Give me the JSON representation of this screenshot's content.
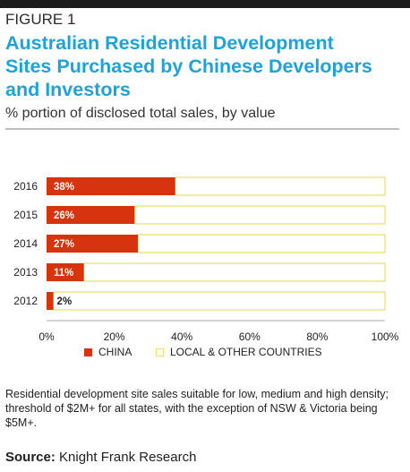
{
  "figure_label": "FIGURE 1",
  "colors": {
    "china": "#d7330f",
    "other_border": "#f1dc6d",
    "title": "#1ea3d9",
    "axis": "#aaaaaa"
  },
  "chart_data": {
    "type": "bar",
    "orientation": "horizontal",
    "stacked": true,
    "title_lines": [
      "Australian Residential Development",
      "Sites Purchased by Chinese Developers",
      "and Investors"
    ],
    "subtitle": "% portion of disclosed total sales, by value",
    "categories": [
      "2016",
      "2015",
      "2014",
      "2013",
      "2012"
    ],
    "series": [
      {
        "name": "CHINA",
        "values": [
          38,
          26,
          27,
          11,
          2
        ],
        "labels": [
          "38%",
          "26%",
          "27%",
          "11%",
          "2%"
        ]
      },
      {
        "name": "LOCAL & OTHER COUNTRIES",
        "values": [
          62,
          74,
          73,
          89,
          98
        ]
      }
    ],
    "xlim": [
      0,
      100
    ],
    "xticks": [
      "0%",
      "20%",
      "40%",
      "60%",
      "80%",
      "100%"
    ],
    "grid": false,
    "legend_position": "bottom"
  },
  "note": "Residential development site sales suitable for low, medium and high density; threshold of $2M+ for all states, with the exception of NSW & Victoria being $5M+.",
  "source": {
    "label": "Source:",
    "text": "Knight Frank Research"
  }
}
